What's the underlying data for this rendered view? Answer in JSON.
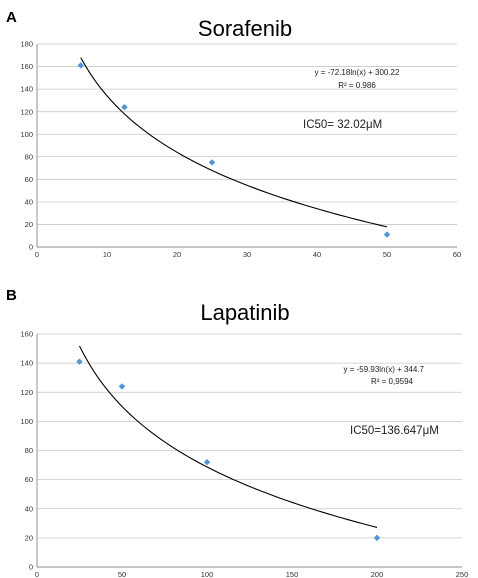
{
  "chart_data": [
    {
      "type": "scatter",
      "panel": "A",
      "title": "Sorafenib",
      "xlim": [
        0,
        60
      ],
      "ylim": [
        0,
        180
      ],
      "xticks": [
        0,
        10,
        20,
        30,
        40,
        50,
        60
      ],
      "yticks": [
        0,
        20,
        40,
        60,
        80,
        100,
        120,
        140,
        160,
        180
      ],
      "grid": true,
      "x": [
        6.25,
        12.5,
        25,
        50
      ],
      "y": [
        161,
        124,
        75,
        11
      ],
      "trendline": {
        "kind": "log",
        "a": -72.18,
        "b": 300.22,
        "x_from": 6.25,
        "x_to": 50
      },
      "equation": "y = -72.18ln(x) + 300.22",
      "r2_text": "R² = 0.986",
      "ic50_text": "IC50= 32.02μM",
      "color": "#4f95d6"
    },
    {
      "type": "scatter",
      "panel": "B",
      "title": "Lapatinib",
      "xlim": [
        0,
        250
      ],
      "ylim": [
        0,
        160
      ],
      "xticks": [
        0,
        50,
        100,
        150,
        200,
        250
      ],
      "yticks": [
        0,
        20,
        40,
        60,
        80,
        100,
        120,
        140,
        160
      ],
      "grid": true,
      "x": [
        25,
        50,
        100,
        200
      ],
      "y": [
        141,
        124,
        72,
        20
      ],
      "trendline": {
        "kind": "log",
        "a": -59.93,
        "b": 344.7,
        "x_from": 25,
        "x_to": 200
      },
      "equation": "y = -59.93ln(x) + 344.7",
      "r2_text": "R² = 0,9594",
      "ic50_text": "IC50=136.647μM",
      "color": "#4f95d6"
    }
  ]
}
